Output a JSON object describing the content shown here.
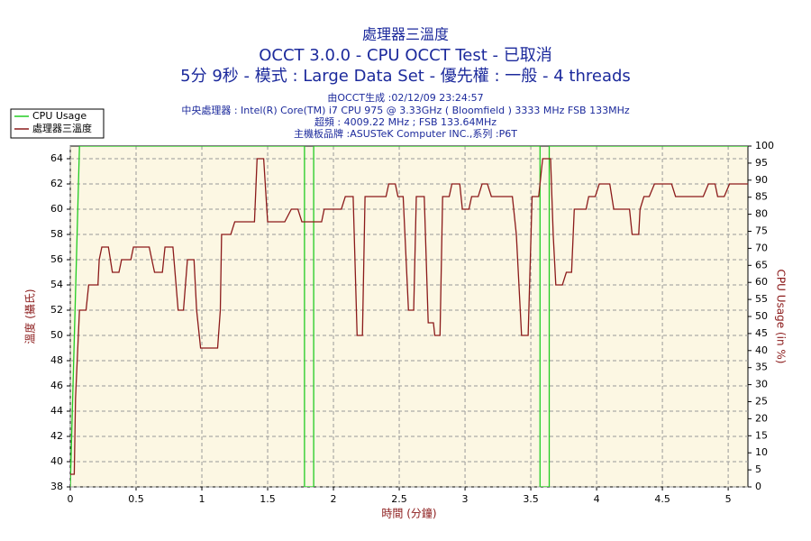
{
  "chart_data": {
    "type": "line",
    "title": "處理器三溫度",
    "subtitle": "OCCT 3.0.0 - CPU OCCT Test - 已取消",
    "subtitle2": "5分 9秒 - 模式 : Large Data Set - 優先權 : 一般 - 4 threads",
    "info": [
      "由OCCT生成 :02/12/09 23:24:57",
      "中央處理器 : Intel(R) Core(TM) i7 CPU 975 @ 3.33GHz ( Bloomfield ) 3333 MHz FSB 133MHz",
      "超頻 : 4009.22 MHz ; FSB 133.64MHz",
      "主機板品牌 :ASUSTeK Computer INC.,系列 :P6T"
    ],
    "xlabel": "時間 (分鐘)",
    "ylabel": "溫度 (攝氏)",
    "y2label": "CPU Usage (in %)",
    "xlim": [
      0,
      5.15
    ],
    "xticks": [
      0,
      0.5,
      1,
      1.5,
      2,
      2.5,
      3,
      3.5,
      4,
      4.5,
      5
    ],
    "ylim": [
      38,
      65
    ],
    "yticks": [
      38,
      40,
      42,
      44,
      46,
      48,
      50,
      52,
      54,
      56,
      58,
      60,
      62,
      64
    ],
    "y2lim": [
      0,
      100
    ],
    "y2ticks": [
      0,
      5,
      10,
      15,
      20,
      25,
      30,
      35,
      40,
      45,
      50,
      55,
      60,
      65,
      70,
      75,
      80,
      85,
      90,
      95,
      100
    ],
    "grid": true,
    "legend": "top-left",
    "series": [
      {
        "name": "CPU Usage",
        "color": "#22cc22",
        "axis": "y2",
        "x": [
          0,
          0.07,
          1.78,
          1.78,
          1.85,
          1.85,
          3.57,
          3.57,
          3.64,
          3.64,
          5.15
        ],
        "values": [
          0,
          100,
          100,
          0,
          0,
          100,
          100,
          0,
          0,
          100,
          100
        ]
      },
      {
        "name": "處理器三溫度",
        "color": "#8b1a1a",
        "axis": "y",
        "x": [
          0,
          0.03,
          0.04,
          0.07,
          0.12,
          0.14,
          0.21,
          0.22,
          0.24,
          0.29,
          0.32,
          0.37,
          0.39,
          0.46,
          0.48,
          0.6,
          0.62,
          0.64,
          0.7,
          0.72,
          0.78,
          0.82,
          0.86,
          0.89,
          0.94,
          0.96,
          0.99,
          1.12,
          1.14,
          1.15,
          1.22,
          1.25,
          1.4,
          1.42,
          1.47,
          1.5,
          1.63,
          1.68,
          1.73,
          1.76,
          1.91,
          1.93,
          2.06,
          2.09,
          2.15,
          2.18,
          2.22,
          2.24,
          2.4,
          2.42,
          2.47,
          2.49,
          2.53,
          2.57,
          2.61,
          2.63,
          2.69,
          2.72,
          2.76,
          2.77,
          2.81,
          2.83,
          2.88,
          2.9,
          2.96,
          2.98,
          3.03,
          3.05,
          3.1,
          3.13,
          3.17,
          3.2,
          3.36,
          3.39,
          3.43,
          3.48,
          3.51,
          3.56,
          3.59,
          3.65,
          3.67,
          3.69,
          3.74,
          3.77,
          3.81,
          3.83,
          3.92,
          3.94,
          3.99,
          4.02,
          4.1,
          4.13,
          4.25,
          4.27,
          4.32,
          4.33,
          4.36,
          4.4,
          4.44,
          4.57,
          4.6,
          4.81,
          4.85,
          4.9,
          4.92,
          4.97,
          5.01,
          5.15
        ],
        "values": [
          39,
          39,
          45,
          52,
          52,
          54,
          54,
          56,
          57,
          57,
          55,
          55,
          56,
          56,
          57,
          57,
          56,
          55,
          55,
          57,
          57,
          52,
          52,
          56,
          56,
          52,
          49,
          49,
          52,
          58,
          58,
          59,
          59,
          64,
          64,
          59,
          59,
          60,
          60,
          59,
          59,
          60,
          60,
          61,
          61,
          50,
          50,
          61,
          61,
          62,
          62,
          61,
          61,
          52,
          52,
          61,
          61,
          51,
          51,
          50,
          50,
          61,
          61,
          62,
          62,
          60,
          60,
          61,
          61,
          62,
          62,
          61,
          61,
          58,
          50,
          50,
          61,
          61,
          64,
          64,
          58,
          54,
          54,
          55,
          55,
          60,
          60,
          61,
          61,
          62,
          62,
          60,
          60,
          58,
          58,
          60,
          61,
          61,
          62,
          62,
          61,
          61,
          62,
          62,
          61,
          61,
          62,
          62
        ]
      }
    ]
  }
}
